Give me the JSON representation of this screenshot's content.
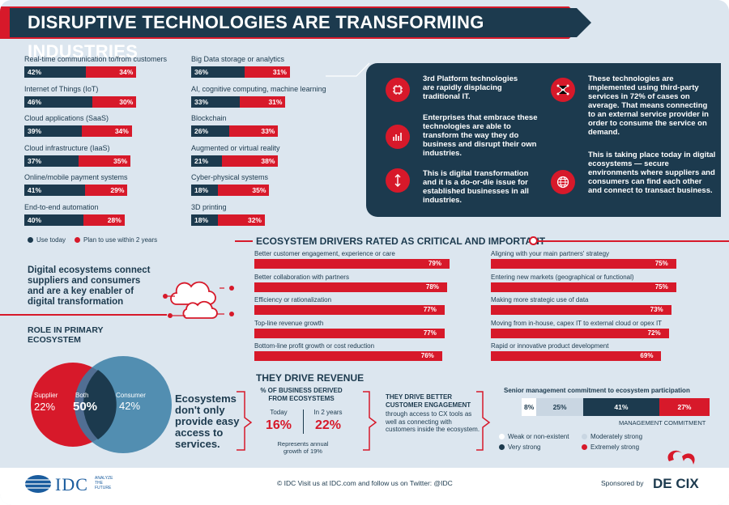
{
  "title": "DISRUPTIVE TECHNOLOGIES ARE TRANSFORMING INDUSTRIES",
  "tech_left": [
    {
      "label": "Real-time communication to/from customers",
      "use": "42%",
      "plan": "34%",
      "use_v": 42,
      "plan_v": 34
    },
    {
      "label": "Internet of Things (IoT)",
      "use": "46%",
      "plan": "30%",
      "use_v": 46,
      "plan_v": 30
    },
    {
      "label": "Cloud applications (SaaS)",
      "use": "39%",
      "plan": "34%",
      "use_v": 39,
      "plan_v": 34
    },
    {
      "label": "Cloud infrastructure (IaaS)",
      "use": "37%",
      "plan": "35%",
      "use_v": 37,
      "plan_v": 35
    },
    {
      "label": "Online/mobile payment systems",
      "use": "41%",
      "plan": "29%",
      "use_v": 41,
      "plan_v": 29
    },
    {
      "label": "End-to-end automation",
      "use": "40%",
      "plan": "28%",
      "use_v": 40,
      "plan_v": 28
    }
  ],
  "tech_right": [
    {
      "label": "Big Data storage or analytics",
      "use": "36%",
      "plan": "31%",
      "use_v": 36,
      "plan_v": 31
    },
    {
      "label": "AI, cognitive computing, machine learning",
      "use": "33%",
      "plan": "31%",
      "use_v": 33,
      "plan_v": 31
    },
    {
      "label": "Blockchain",
      "use": "26%",
      "plan": "33%",
      "use_v": 26,
      "plan_v": 33
    },
    {
      "label": "Augmented or virtual reality",
      "use": "21%",
      "plan": "38%",
      "use_v": 21,
      "plan_v": 38
    },
    {
      "label": "Cyber-physical systems",
      "use": "18%",
      "plan": "35%",
      "use_v": 18,
      "plan_v": 35
    },
    {
      "label": "3D printing",
      "use": "18%",
      "plan": "32%",
      "use_v": 18,
      "plan_v": 32
    }
  ],
  "legend": {
    "use": "Use today",
    "plan": "Plan to use within 2 years"
  },
  "info": {
    "t1": "3rd Platform technologies are rapidly displacing traditional IT.",
    "t2": "Enterprises that embrace these technologies are able to transform the way they do business and disrupt their own industries.",
    "t3": "This is digital transformation and it is a do-or-die issue for established businesses in all industries.",
    "t4": "These technologies are implemented using third-party services in 72% of cases on average. That means connecting to an external service provider in order to consume the service on demand.",
    "t5": "This is taking place today in digital ecosystems — secure environments where suppliers and consumers can find each other and connect to transact business."
  },
  "drivers_title": "ECOSYSTEM DRIVERS RATED AS CRITICAL AND IMPORTANT",
  "drivers_left": [
    {
      "label": "Better customer engagement, experience or care",
      "value": "79%",
      "v": 79
    },
    {
      "label": "Better collaboration with partners",
      "value": "78%",
      "v": 78
    },
    {
      "label": "Efficiency or rationalization",
      "value": "77%",
      "v": 77
    },
    {
      "label": "Top-line revenue growth",
      "value": "77%",
      "v": 77
    },
    {
      "label": "Bottom-line profit growth or cost reduction",
      "value": "76%",
      "v": 76
    }
  ],
  "drivers_right": [
    {
      "label": "Aligning with your main partners' strategy",
      "value": "75%",
      "v": 75
    },
    {
      "label": "Entering new markets (geographical or functional)",
      "value": "75%",
      "v": 75
    },
    {
      "label": "Making more strategic use of data",
      "value": "73%",
      "v": 73
    },
    {
      "label": "Moving from in-house, capex IT to external cloud or opex IT",
      "value": "72%",
      "v": 72
    },
    {
      "label": "Rapid or innovative product development",
      "value": "69%",
      "v": 69
    }
  ],
  "eco_text": "Digital ecosystems connect suppliers and consumers and are a key enabler of digital transformation",
  "role": {
    "title": "ROLE IN PRIMARY ECOSYSTEM",
    "supplier_label": "Supplier",
    "supplier_value": "22%",
    "both_label": "Both",
    "both_value": "50%",
    "consumer_label": "Consumer",
    "consumer_value": "42%"
  },
  "revenue": {
    "title": "THEY DRIVE REVENUE",
    "big_text": "Ecosystems don't only provide easy access to services.",
    "pct_title": "% OF BUSINESS DERIVED FROM ECOSYSTEMS",
    "today_label": "Today",
    "today_value": "16%",
    "two_years_label": "In 2 years",
    "two_years_value": "22%",
    "growth_note": "Represents annual growth of 19%",
    "engage_title": "THEY DRIVE BETTER CUSTOMER ENGAGEMENT",
    "engage_text": "through access to CX tools as well as connecting with customers inside the ecosystem."
  },
  "mgmt": {
    "title": "Senior management commitment to ecosystem participation",
    "segments": [
      {
        "value": "8%",
        "v": 8,
        "color": "#ffffff",
        "text": "#1c3a4e"
      },
      {
        "value": "25%",
        "v": 25,
        "color": "#c9d6e2",
        "text": "#1c3a4e"
      },
      {
        "value": "41%",
        "v": 41,
        "color": "#1c3a4e",
        "text": "#ffffff"
      },
      {
        "value": "27%",
        "v": 27,
        "color": "#d7192a",
        "text": "#ffffff"
      }
    ],
    "axis_label": "MANAGEMENT COMMITMENT",
    "legend": [
      "Weak or non-existent",
      "Moderately strong",
      "Very strong",
      "Extremely strong"
    ]
  },
  "footer": {
    "logo": "IDC",
    "tagline": "ANALYZE THE FUTURE",
    "text": "© IDC Visit us at IDC.com and follow us on Twitter: @IDC",
    "sponsored": "Sponsored by",
    "sponsor_logo": "DE CIX"
  },
  "colors": {
    "navy": "#1c3a4e",
    "red": "#d7192a",
    "bg": "#dce6ef"
  }
}
